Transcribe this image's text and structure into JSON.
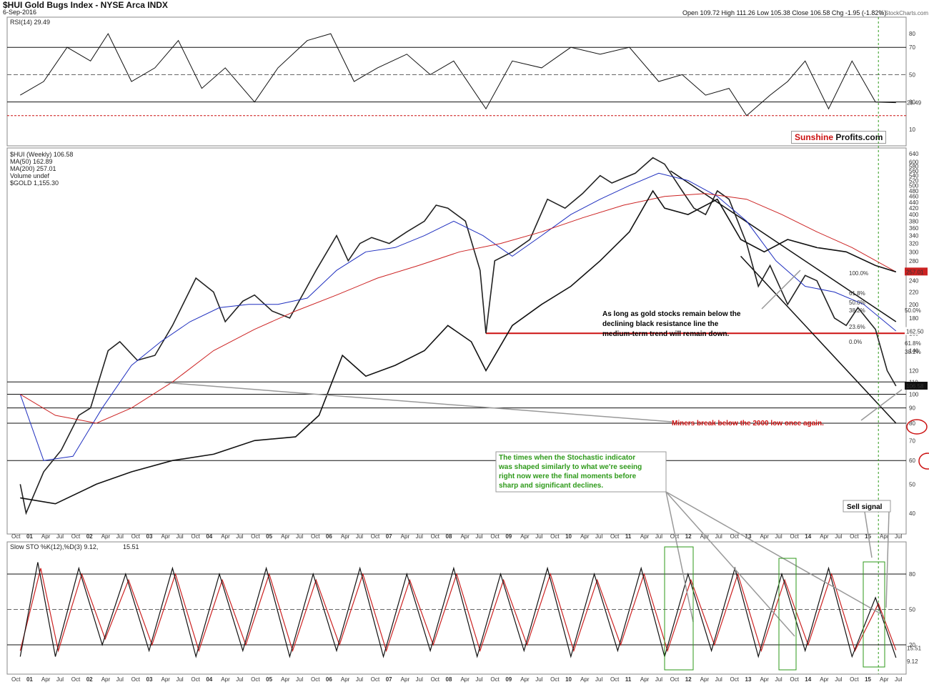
{
  "header": {
    "title": "$HUI Gold Bugs Index - NYSE Arca INDX",
    "date": "6-Sep-2016",
    "ohlc": "Open 109.72  High 111.26  Low 105.38  Close 106.58  Chg -1.95 (-1.82%)",
    "watermark": "© StockCharts.com",
    "brand_a": "Sunshine",
    "brand_b": " Profits.com"
  },
  "rsi_panel": {
    "legend": "RSI(14) 29.49",
    "levels": [
      "80",
      "70",
      "50",
      "30",
      "10"
    ],
    "current": "29.49"
  },
  "price_panel": {
    "legend": [
      {
        "text": "$HUI (Weekly) 106.58",
        "color": "#222222"
      },
      {
        "text": "MA(50) 162.89",
        "color": "#1f2fbf"
      },
      {
        "text": "MA(200) 257.01",
        "color": "#cc2222"
      },
      {
        "text": "Volume undef",
        "color": "#222222"
      },
      {
        "text": "$GOLD 1,155.30",
        "color": "#222222"
      }
    ],
    "yticks": [
      "640",
      "600",
      "580",
      "560",
      "540",
      "520",
      "500",
      "480",
      "460",
      "440",
      "420",
      "400",
      "380",
      "360",
      "340",
      "320",
      "300",
      "280",
      "260",
      "240",
      "220",
      "200",
      "180",
      "160",
      "140",
      "120",
      "110",
      "100",
      "90",
      "80",
      "70",
      "60",
      "50",
      "40"
    ],
    "tags": {
      "ma200": "257.01",
      "last": "106.58",
      "t162": "162.50"
    },
    "fib": [
      "100.0%",
      "61.8%",
      "50.0%",
      "38.2%",
      "23.6%",
      "0.0%"
    ],
    "right_fib": [
      "50.0%",
      "61.8%",
      "38.2%"
    ]
  },
  "stoch_panel": {
    "legend_a": "Slow STO %K(12),%D(3) 9.12, ",
    "legend_b": "15.51",
    "levels": [
      "80",
      "50",
      "20"
    ],
    "tag_d": "15.51",
    "tag_k": "9.12"
  },
  "annotations": {
    "resistance": [
      "As long as gold stocks remain below the",
      "declining black resistance line the",
      "medium-term trend will remain down."
    ],
    "miners": "Miners break below the 2000 low once again.",
    "stochastic": [
      "The times when the Stochastic indicator",
      "was shaped similarly to what we're seeing",
      "right now were the final moments before",
      "sharp and significant declines."
    ],
    "sell_signal": "Sell signal"
  },
  "x_axis": {
    "labels": [
      "Oct",
      "01",
      "Apr",
      "Jul",
      "Oct",
      "02",
      "Apr",
      "Jul",
      "Oct",
      "03",
      "Apr",
      "Jul",
      "Oct",
      "04",
      "Apr",
      "Jul",
      "Oct",
      "05",
      "Apr",
      "Jul",
      "Oct",
      "06",
      "Apr",
      "Jul",
      "Oct",
      "07",
      "Apr",
      "Jul",
      "Oct",
      "08",
      "Apr",
      "Jul",
      "Oct",
      "09",
      "Apr",
      "Jul",
      "Oct",
      "10",
      "Apr",
      "Jul",
      "Oct",
      "11",
      "Apr",
      "Jul",
      "Oct",
      "12",
      "Apr",
      "Jul",
      "Oct",
      "13",
      "Apr",
      "Jul",
      "Oct",
      "14",
      "Apr",
      "Jul",
      "Oct",
      "15",
      "Apr",
      "Jul"
    ]
  },
  "chart_data": {
    "type": "line",
    "log_scale": true,
    "series": [
      {
        "name": "$HUI (Weekly)",
        "color": "#222222",
        "points": [
          [
            2000.9,
            50
          ],
          [
            2001.0,
            40
          ],
          [
            2001.3,
            55
          ],
          [
            2001.6,
            65
          ],
          [
            2001.9,
            85
          ],
          [
            2002.1,
            90
          ],
          [
            2002.4,
            140
          ],
          [
            2002.6,
            150
          ],
          [
            2002.9,
            130
          ],
          [
            2003.2,
            135
          ],
          [
            2003.5,
            170
          ],
          [
            2003.9,
            245
          ],
          [
            2004.2,
            220
          ],
          [
            2004.4,
            175
          ],
          [
            2004.7,
            205
          ],
          [
            2004.9,
            215
          ],
          [
            2005.2,
            190
          ],
          [
            2005.5,
            180
          ],
          [
            2005.8,
            230
          ],
          [
            2005.95,
            260
          ],
          [
            2006.3,
            340
          ],
          [
            2006.5,
            280
          ],
          [
            2006.7,
            320
          ],
          [
            2006.9,
            335
          ],
          [
            2007.2,
            320
          ],
          [
            2007.5,
            350
          ],
          [
            2007.8,
            380
          ],
          [
            2008.0,
            430
          ],
          [
            2008.2,
            420
          ],
          [
            2008.5,
            380
          ],
          [
            2008.75,
            260
          ],
          [
            2008.85,
            160
          ],
          [
            2009.0,
            280
          ],
          [
            2009.3,
            300
          ],
          [
            2009.6,
            330
          ],
          [
            2009.9,
            450
          ],
          [
            2010.2,
            420
          ],
          [
            2010.5,
            470
          ],
          [
            2010.8,
            540
          ],
          [
            2011.0,
            510
          ],
          [
            2011.4,
            550
          ],
          [
            2011.7,
            620
          ],
          [
            2011.9,
            590
          ],
          [
            2012.2,
            480
          ],
          [
            2012.4,
            420
          ],
          [
            2012.6,
            400
          ],
          [
            2012.8,
            480
          ],
          [
            2013.0,
            450
          ],
          [
            2013.3,
            320
          ],
          [
            2013.5,
            230
          ],
          [
            2013.7,
            270
          ],
          [
            2014.0,
            200
          ],
          [
            2014.3,
            250
          ],
          [
            2014.5,
            240
          ],
          [
            2014.8,
            180
          ],
          [
            2015.0,
            170
          ],
          [
            2015.2,
            195
          ],
          [
            2015.5,
            165
          ],
          [
            2015.7,
            120
          ],
          [
            2015.85,
            106.58
          ]
        ]
      },
      {
        "name": "MA(50)",
        "color": "#1f2fbf",
        "points": [
          [
            2000.9,
            100
          ],
          [
            2001.3,
            60
          ],
          [
            2001.8,
            62
          ],
          [
            2002.3,
            90
          ],
          [
            2002.8,
            125
          ],
          [
            2003.3,
            150
          ],
          [
            2003.8,
            175
          ],
          [
            2004.3,
            195
          ],
          [
            2004.8,
            200
          ],
          [
            2005.3,
            200
          ],
          [
            2005.8,
            210
          ],
          [
            2006.3,
            260
          ],
          [
            2006.8,
            300
          ],
          [
            2007.3,
            310
          ],
          [
            2007.8,
            340
          ],
          [
            2008.3,
            380
          ],
          [
            2008.8,
            340
          ],
          [
            2009.3,
            290
          ],
          [
            2009.8,
            340
          ],
          [
            2010.3,
            400
          ],
          [
            2010.8,
            450
          ],
          [
            2011.3,
            500
          ],
          [
            2011.8,
            550
          ],
          [
            2012.3,
            520
          ],
          [
            2012.8,
            460
          ],
          [
            2013.3,
            380
          ],
          [
            2013.8,
            280
          ],
          [
            2014.3,
            230
          ],
          [
            2014.8,
            220
          ],
          [
            2015.3,
            200
          ],
          [
            2015.85,
            162.89
          ]
        ]
      },
      {
        "name": "MA(200)",
        "color": "#cc2222",
        "points": [
          [
            2000.9,
            100
          ],
          [
            2001.5,
            85
          ],
          [
            2002.2,
            80
          ],
          [
            2002.8,
            90
          ],
          [
            2003.5,
            110
          ],
          [
            2004.2,
            140
          ],
          [
            2004.9,
            165
          ],
          [
            2005.6,
            190
          ],
          [
            2006.3,
            215
          ],
          [
            2007.0,
            245
          ],
          [
            2007.7,
            270
          ],
          [
            2008.4,
            300
          ],
          [
            2009.1,
            320
          ],
          [
            2009.8,
            350
          ],
          [
            2010.5,
            390
          ],
          [
            2011.2,
            430
          ],
          [
            2011.9,
            460
          ],
          [
            2012.6,
            470
          ],
          [
            2013.3,
            450
          ],
          [
            2013.9,
            400
          ],
          [
            2014.5,
            350
          ],
          [
            2015.1,
            310
          ],
          [
            2015.85,
            257.01
          ]
        ]
      },
      {
        "name": "$GOLD",
        "color": "#111111",
        "points": [
          [
            2000.9,
            45
          ],
          [
            2001.5,
            43
          ],
          [
            2002.2,
            50
          ],
          [
            2002.8,
            55
          ],
          [
            2003.5,
            60
          ],
          [
            2004.2,
            63
          ],
          [
            2004.9,
            70
          ],
          [
            2005.6,
            72
          ],
          [
            2006.0,
            85
          ],
          [
            2006.4,
            135
          ],
          [
            2006.8,
            115
          ],
          [
            2007.3,
            125
          ],
          [
            2007.8,
            140
          ],
          [
            2008.2,
            170
          ],
          [
            2008.6,
            150
          ],
          [
            2008.85,
            120
          ],
          [
            2009.3,
            170
          ],
          [
            2009.8,
            200
          ],
          [
            2010.3,
            230
          ],
          [
            2010.8,
            280
          ],
          [
            2011.3,
            350
          ],
          [
            2011.7,
            480
          ],
          [
            2011.9,
            420
          ],
          [
            2012.3,
            400
          ],
          [
            2012.8,
            450
          ],
          [
            2013.2,
            330
          ],
          [
            2013.6,
            300
          ],
          [
            2014.0,
            330
          ],
          [
            2014.5,
            310
          ],
          [
            2015.0,
            300
          ],
          [
            2015.5,
            270
          ],
          [
            2015.85,
            257
          ]
        ]
      },
      {
        "name": "RSI(14)",
        "color": "#111111",
        "points": [
          [
            2000.9,
            35
          ],
          [
            2001.3,
            45
          ],
          [
            2001.7,
            70
          ],
          [
            2002.1,
            60
          ],
          [
            2002.4,
            80
          ],
          [
            2002.8,
            45
          ],
          [
            2003.2,
            55
          ],
          [
            2003.6,
            75
          ],
          [
            2004.0,
            40
          ],
          [
            2004.4,
            55
          ],
          [
            2004.9,
            30
          ],
          [
            2005.3,
            55
          ],
          [
            2005.8,
            75
          ],
          [
            2006.2,
            80
          ],
          [
            2006.6,
            45
          ],
          [
            2007.0,
            55
          ],
          [
            2007.5,
            65
          ],
          [
            2007.9,
            50
          ],
          [
            2008.3,
            60
          ],
          [
            2008.85,
            25
          ],
          [
            2009.3,
            60
          ],
          [
            2009.8,
            55
          ],
          [
            2010.3,
            70
          ],
          [
            2010.8,
            65
          ],
          [
            2011.3,
            70
          ],
          [
            2011.8,
            45
          ],
          [
            2012.2,
            50
          ],
          [
            2012.6,
            35
          ],
          [
            2013.0,
            40
          ],
          [
            2013.3,
            20
          ],
          [
            2013.7,
            35
          ],
          [
            2014.0,
            45
          ],
          [
            2014.3,
            60
          ],
          [
            2014.7,
            25
          ],
          [
            2015.1,
            60
          ],
          [
            2015.5,
            30
          ],
          [
            2015.85,
            29.49
          ]
        ]
      },
      {
        "name": "%K",
        "color": "#111111",
        "points": [
          [
            2000.9,
            10
          ],
          [
            2001.2,
            90
          ],
          [
            2001.5,
            10
          ],
          [
            2001.9,
            85
          ],
          [
            2002.3,
            20
          ],
          [
            2002.7,
            80
          ],
          [
            2003.1,
            15
          ],
          [
            2003.5,
            85
          ],
          [
            2003.9,
            10
          ],
          [
            2004.3,
            80
          ],
          [
            2004.7,
            15
          ],
          [
            2005.1,
            85
          ],
          [
            2005.5,
            10
          ],
          [
            2005.9,
            80
          ],
          [
            2006.3,
            15
          ],
          [
            2006.7,
            85
          ],
          [
            2007.1,
            10
          ],
          [
            2007.5,
            80
          ],
          [
            2007.9,
            15
          ],
          [
            2008.3,
            85
          ],
          [
            2008.7,
            10
          ],
          [
            2009.1,
            80
          ],
          [
            2009.5,
            15
          ],
          [
            2009.9,
            85
          ],
          [
            2010.3,
            10
          ],
          [
            2010.7,
            80
          ],
          [
            2011.1,
            15
          ],
          [
            2011.5,
            85
          ],
          [
            2011.9,
            10
          ],
          [
            2012.3,
            80
          ],
          [
            2012.7,
            15
          ],
          [
            2013.1,
            85
          ],
          [
            2013.5,
            10
          ],
          [
            2013.9,
            80
          ],
          [
            2014.3,
            15
          ],
          [
            2014.7,
            85
          ],
          [
            2015.1,
            10
          ],
          [
            2015.5,
            60
          ],
          [
            2015.85,
            9.12
          ]
        ]
      },
      {
        "name": "%D",
        "color": "#cc2222",
        "points": [
          [
            2000.9,
            15
          ],
          [
            2001.25,
            85
          ],
          [
            2001.55,
            15
          ],
          [
            2001.95,
            80
          ],
          [
            2002.35,
            25
          ],
          [
            2002.75,
            75
          ],
          [
            2003.15,
            20
          ],
          [
            2003.55,
            80
          ],
          [
            2003.95,
            15
          ],
          [
            2004.35,
            75
          ],
          [
            2004.75,
            20
          ],
          [
            2005.15,
            80
          ],
          [
            2005.55,
            15
          ],
          [
            2005.95,
            75
          ],
          [
            2006.35,
            20
          ],
          [
            2006.75,
            80
          ],
          [
            2007.15,
            15
          ],
          [
            2007.55,
            75
          ],
          [
            2007.95,
            20
          ],
          [
            2008.35,
            80
          ],
          [
            2008.75,
            15
          ],
          [
            2009.15,
            75
          ],
          [
            2009.55,
            20
          ],
          [
            2009.95,
            80
          ],
          [
            2010.35,
            15
          ],
          [
            2010.75,
            75
          ],
          [
            2011.15,
            20
          ],
          [
            2011.55,
            80
          ],
          [
            2011.95,
            15
          ],
          [
            2012.35,
            75
          ],
          [
            2012.75,
            20
          ],
          [
            2013.15,
            80
          ],
          [
            2013.55,
            15
          ],
          [
            2013.95,
            75
          ],
          [
            2014.35,
            20
          ],
          [
            2014.75,
            80
          ],
          [
            2015.15,
            15
          ],
          [
            2015.55,
            55
          ],
          [
            2015.85,
            15.51
          ]
        ]
      }
    ],
    "x_range": [
      2000.75,
      2015.95
    ],
    "price_range": [
      35,
      650
    ],
    "rsi_range": [
      0,
      90
    ],
    "stoch_range": [
      0,
      100
    ],
    "grid": false
  }
}
